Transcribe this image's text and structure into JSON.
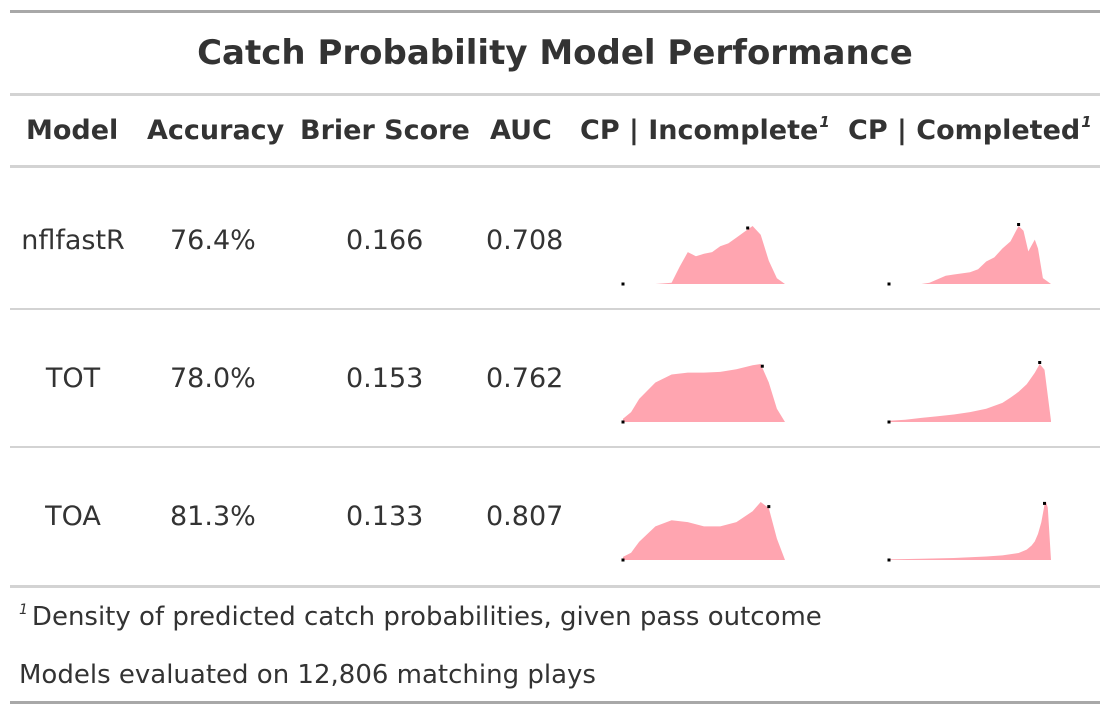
{
  "chart_data": {
    "type": "table",
    "title": "Catch Probability Model Performance",
    "columns": [
      "Model",
      "Accuracy",
      "Brier Score",
      "AUC",
      "CP | Incomplete",
      "CP | Completed"
    ],
    "footnote_mark": "1",
    "rows": [
      {
        "model": "nflfastR",
        "accuracy": "76.4%",
        "brier": "0.166",
        "auc": "0.708",
        "cp_incomplete": {
          "x": [
            0.0,
            0.1,
            0.2,
            0.3,
            0.35,
            0.4,
            0.45,
            0.5,
            0.55,
            0.6,
            0.65,
            0.7,
            0.75,
            0.8,
            0.85,
            0.9,
            0.95,
            1.0
          ],
          "density": [
            0,
            0,
            0,
            0.02,
            0.3,
            0.55,
            0.48,
            0.52,
            0.55,
            0.65,
            0.7,
            0.8,
            0.9,
            1.0,
            0.85,
            0.4,
            0.1,
            0
          ],
          "min": 0.0,
          "max": 0.77
        },
        "cp_completed": {
          "x": [
            0.0,
            0.1,
            0.2,
            0.25,
            0.3,
            0.35,
            0.4,
            0.5,
            0.55,
            0.6,
            0.65,
            0.7,
            0.75,
            0.8,
            0.83,
            0.86,
            0.9,
            0.92,
            0.95,
            1.0
          ],
          "density": [
            0,
            0,
            0,
            0.02,
            0.08,
            0.14,
            0.16,
            0.2,
            0.25,
            0.38,
            0.45,
            0.6,
            0.72,
            0.98,
            0.9,
            0.55,
            0.75,
            0.6,
            0.1,
            0
          ],
          "min": 0.0,
          "max": 0.8
        }
      },
      {
        "model": "TOT",
        "accuracy": "78.0%",
        "brier": "0.153",
        "auc": "0.762",
        "cp_incomplete": {
          "x": [
            0.0,
            0.05,
            0.1,
            0.2,
            0.3,
            0.4,
            0.5,
            0.6,
            0.7,
            0.8,
            0.85,
            0.9,
            0.95,
            1.0
          ],
          "density": [
            0.05,
            0.15,
            0.35,
            0.6,
            0.72,
            0.75,
            0.75,
            0.76,
            0.8,
            0.86,
            0.88,
            0.6,
            0.2,
            0
          ],
          "min": 0.0,
          "max": 0.86
        },
        "cp_completed": {
          "x": [
            0.0,
            0.1,
            0.2,
            0.3,
            0.4,
            0.5,
            0.6,
            0.7,
            0.75,
            0.8,
            0.85,
            0.9,
            0.93,
            0.96,
            1.0
          ],
          "density": [
            0.02,
            0.04,
            0.07,
            0.1,
            0.13,
            0.17,
            0.23,
            0.33,
            0.42,
            0.52,
            0.65,
            0.85,
            1.0,
            0.9,
            0.02
          ],
          "min": 0.0,
          "max": 0.93
        }
      },
      {
        "model": "TOA",
        "accuracy": "81.3%",
        "brier": "0.133",
        "auc": "0.807",
        "cp_incomplete": {
          "x": [
            0.0,
            0.05,
            0.1,
            0.2,
            0.3,
            0.4,
            0.5,
            0.6,
            0.7,
            0.8,
            0.85,
            0.9,
            0.95,
            1.0
          ],
          "density": [
            0.05,
            0.12,
            0.3,
            0.55,
            0.65,
            0.62,
            0.55,
            0.55,
            0.62,
            0.8,
            0.95,
            0.85,
            0.35,
            0
          ],
          "min": 0.0,
          "max": 0.9
        },
        "cp_completed": {
          "x": [
            0.0,
            0.2,
            0.4,
            0.6,
            0.7,
            0.8,
            0.85,
            0.88,
            0.9,
            0.92,
            0.94,
            0.96,
            0.97,
            0.98,
            1.0
          ],
          "density": [
            0.01,
            0.02,
            0.035,
            0.06,
            0.08,
            0.12,
            0.18,
            0.25,
            0.32,
            0.45,
            0.65,
            0.95,
            1.0,
            0.9,
            0.0
          ],
          "min": 0.0,
          "max": 0.96
        }
      }
    ],
    "footnotes": [
      "Density of predicted catch probabilities, given pass outcome",
      "Models evaluated on 12,806 matching plays"
    ],
    "colors": {
      "fill": "#ffa5b0",
      "marker": "#000000",
      "text": "#333333",
      "rule": "#d3d3d3",
      "outer_rule": "#a8a8a8"
    }
  }
}
